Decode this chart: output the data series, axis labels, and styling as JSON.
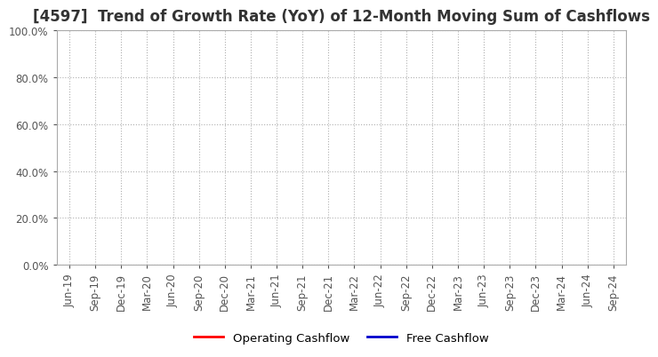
{
  "title": "[4597]  Trend of Growth Rate (YoY) of 12-Month Moving Sum of Cashflows",
  "title_fontsize": 12,
  "ylim": [
    0.0,
    1.0
  ],
  "yticks": [
    0.0,
    0.2,
    0.4,
    0.6,
    0.8,
    1.0
  ],
  "ytick_labels": [
    "0.0%",
    "20.0%",
    "40.0%",
    "60.0%",
    "80.0%",
    "100.0%"
  ],
  "xtick_labels": [
    "Jun-19",
    "Sep-19",
    "Dec-19",
    "Mar-20",
    "Jun-20",
    "Sep-20",
    "Dec-20",
    "Mar-21",
    "Jun-21",
    "Sep-21",
    "Dec-21",
    "Mar-22",
    "Jun-22",
    "Sep-22",
    "Dec-22",
    "Mar-23",
    "Jun-23",
    "Sep-23",
    "Dec-23",
    "Mar-24",
    "Jun-24",
    "Sep-24"
  ],
  "legend_entries": [
    {
      "label": "Operating Cashflow",
      "color": "#ff0000"
    },
    {
      "label": "Free Cashflow",
      "color": "#0000cc"
    }
  ],
  "grid_color": "#b0b0b0",
  "background_color": "#ffffff",
  "plot_bg_color": "#ffffff",
  "tick_label_fontsize": 8.5,
  "legend_fontsize": 9.5,
  "title_color": "#333333"
}
